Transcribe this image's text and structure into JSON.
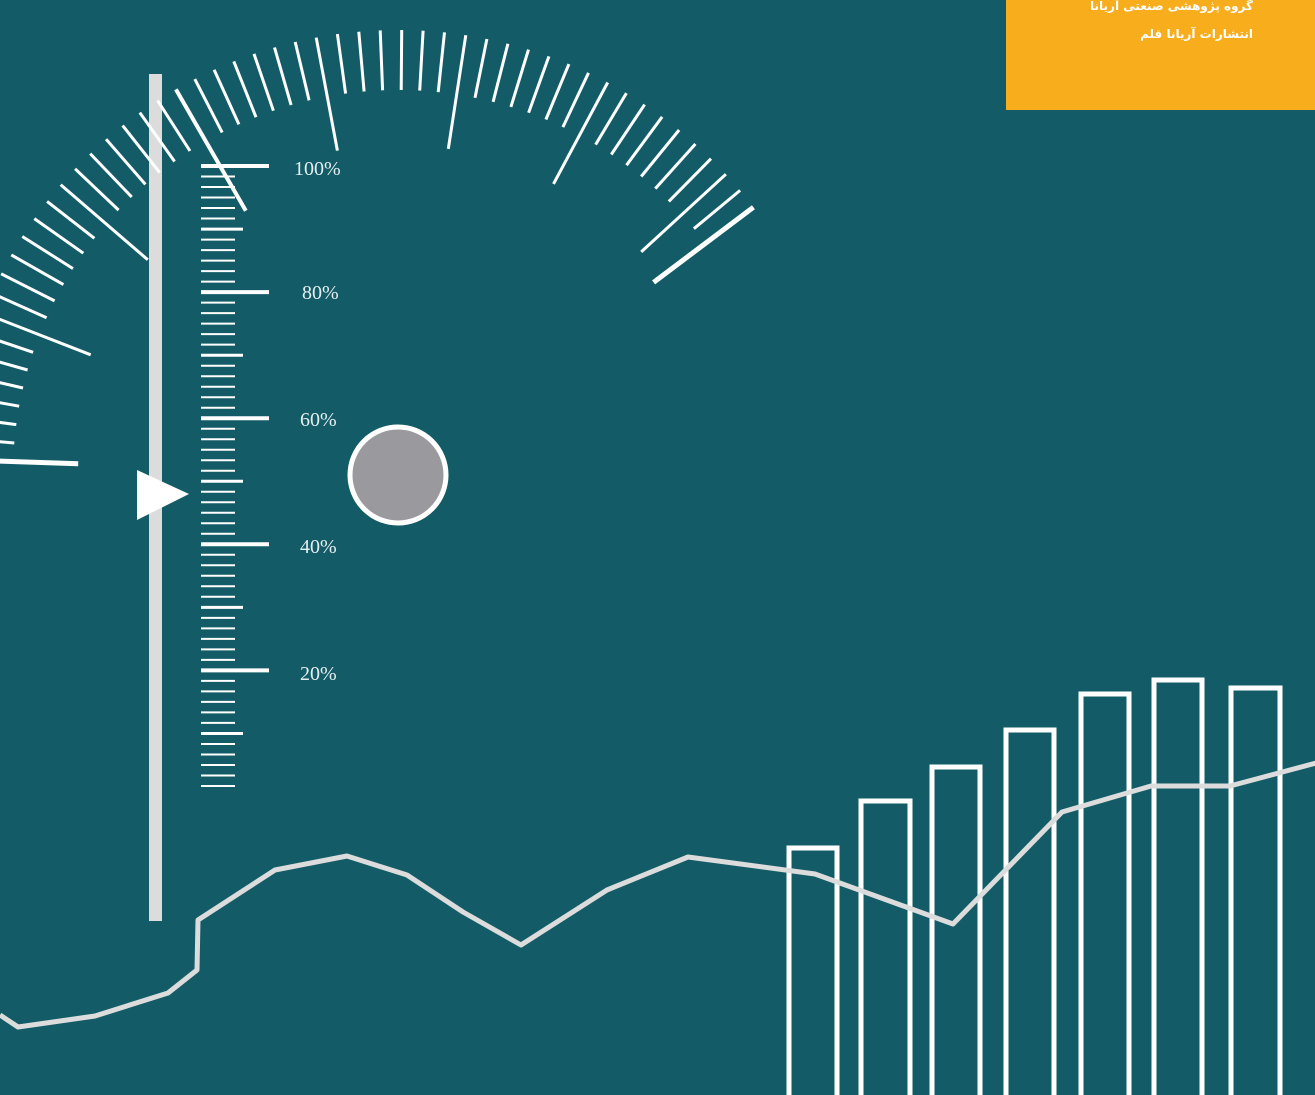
{
  "publisher": {
    "group_name": "گروه پژوهشی صنعتی آریانا",
    "publisher_name": "انتشارات آریانا قلم",
    "box_color": "#f7ad1c"
  },
  "background_color": "#135c67",
  "stroke_color": "#ffffff",
  "line_color": "#dcdcdc",
  "knob_color": "#9a9a9e",
  "gauge": {
    "labels": [
      "100%",
      "80%",
      "60%",
      "40%",
      "20%"
    ],
    "pointer_level_percent": 50,
    "pointer_icon": "triangle-right-icon"
  }
}
